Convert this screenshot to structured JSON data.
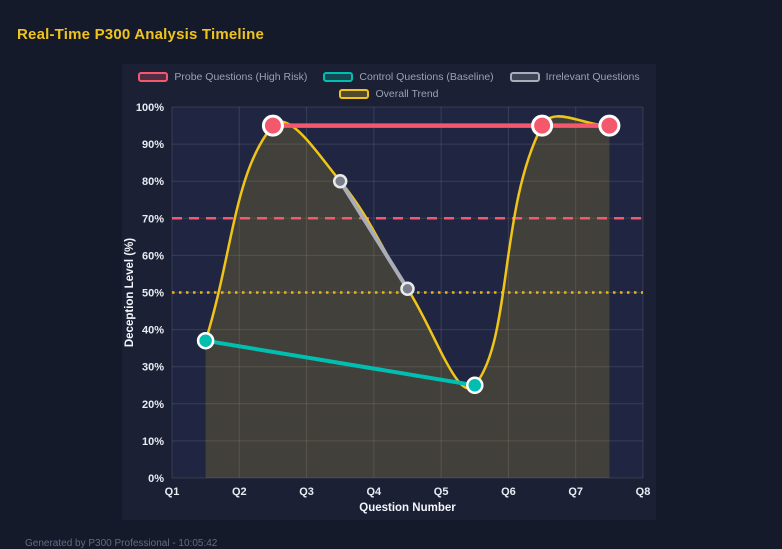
{
  "page": {
    "title": "Real-Time P300 Analysis Timeline",
    "footer": "Generated by P300 Professional - 10:05:42"
  },
  "colors": {
    "page_bg": "#151a2b",
    "panel_bg": "#1b2034",
    "plot_bg": "#202641",
    "grid": "rgba(255,255,255,0.11)",
    "title": "#f0c41c",
    "tick_label": "#e9ebf3",
    "axis_title": "#f3f5fa",
    "legend_label": "#9aa2b4",
    "probe": "#f4586c",
    "control": "#00bfb0",
    "irrelevant": "#a9adb9",
    "trend": "#f0c419",
    "trend_fill": "rgba(240,196,25,0.17)",
    "threshold_high": "#f4586c",
    "threshold_mid": "#edb50e",
    "footer_text": "#636c82"
  },
  "chart_data": {
    "type": "line",
    "title": "Real-Time P300 Analysis Timeline",
    "xlabel": "Question Number",
    "ylabel": "Deception Level (%)",
    "x_ticks": [
      "Q1",
      "Q2",
      "Q3",
      "Q4",
      "Q5",
      "Q6",
      "Q7",
      "Q8"
    ],
    "x_range": [
      1,
      8
    ],
    "ylim": [
      0,
      100
    ],
    "y_tick_step": 10,
    "y_tick_suffix": "%",
    "grid": true,
    "legend_position": "top",
    "series": [
      {
        "name": "Probe Questions (High Risk)",
        "color": "#f4586c",
        "x": [
          2.5,
          6.5,
          7.5
        ],
        "y": [
          95,
          95,
          95
        ],
        "style": "line-points",
        "line_width": 4.5,
        "point_radius": 9.5,
        "point_fill": "#f4586c",
        "point_border": "#ffffff"
      },
      {
        "name": "Control Questions (Baseline)",
        "color": "#00bfb0",
        "x": [
          1.5,
          5.5
        ],
        "y": [
          37,
          25
        ],
        "style": "line-points",
        "line_width": 4,
        "point_radius": 7.5,
        "point_fill": "#00bfb0",
        "point_border": "#ffffff"
      },
      {
        "name": "Irrelevant Questions",
        "color": "#a9adb9",
        "x": [
          3.5,
          4.5
        ],
        "y": [
          80,
          51
        ],
        "style": "line-points",
        "line_width": 4,
        "point_radius": 6,
        "point_fill": "#787d88",
        "point_border": "#e8eaef"
      },
      {
        "name": "Overall Trend",
        "color": "#f0c419",
        "x": [
          1.5,
          2.5,
          3.5,
          4.5,
          5.5,
          6.5,
          7.5
        ],
        "y": [
          37,
          95,
          80,
          51,
          25,
          95,
          95
        ],
        "style": "smooth-area",
        "line_width": 2.5,
        "point_radius": 0
      }
    ],
    "thresholds": [
      {
        "value": 70,
        "color": "#f4586c",
        "dash": "dashed"
      },
      {
        "value": 50,
        "color": "#edb50e",
        "dash": "dotted"
      }
    ]
  }
}
